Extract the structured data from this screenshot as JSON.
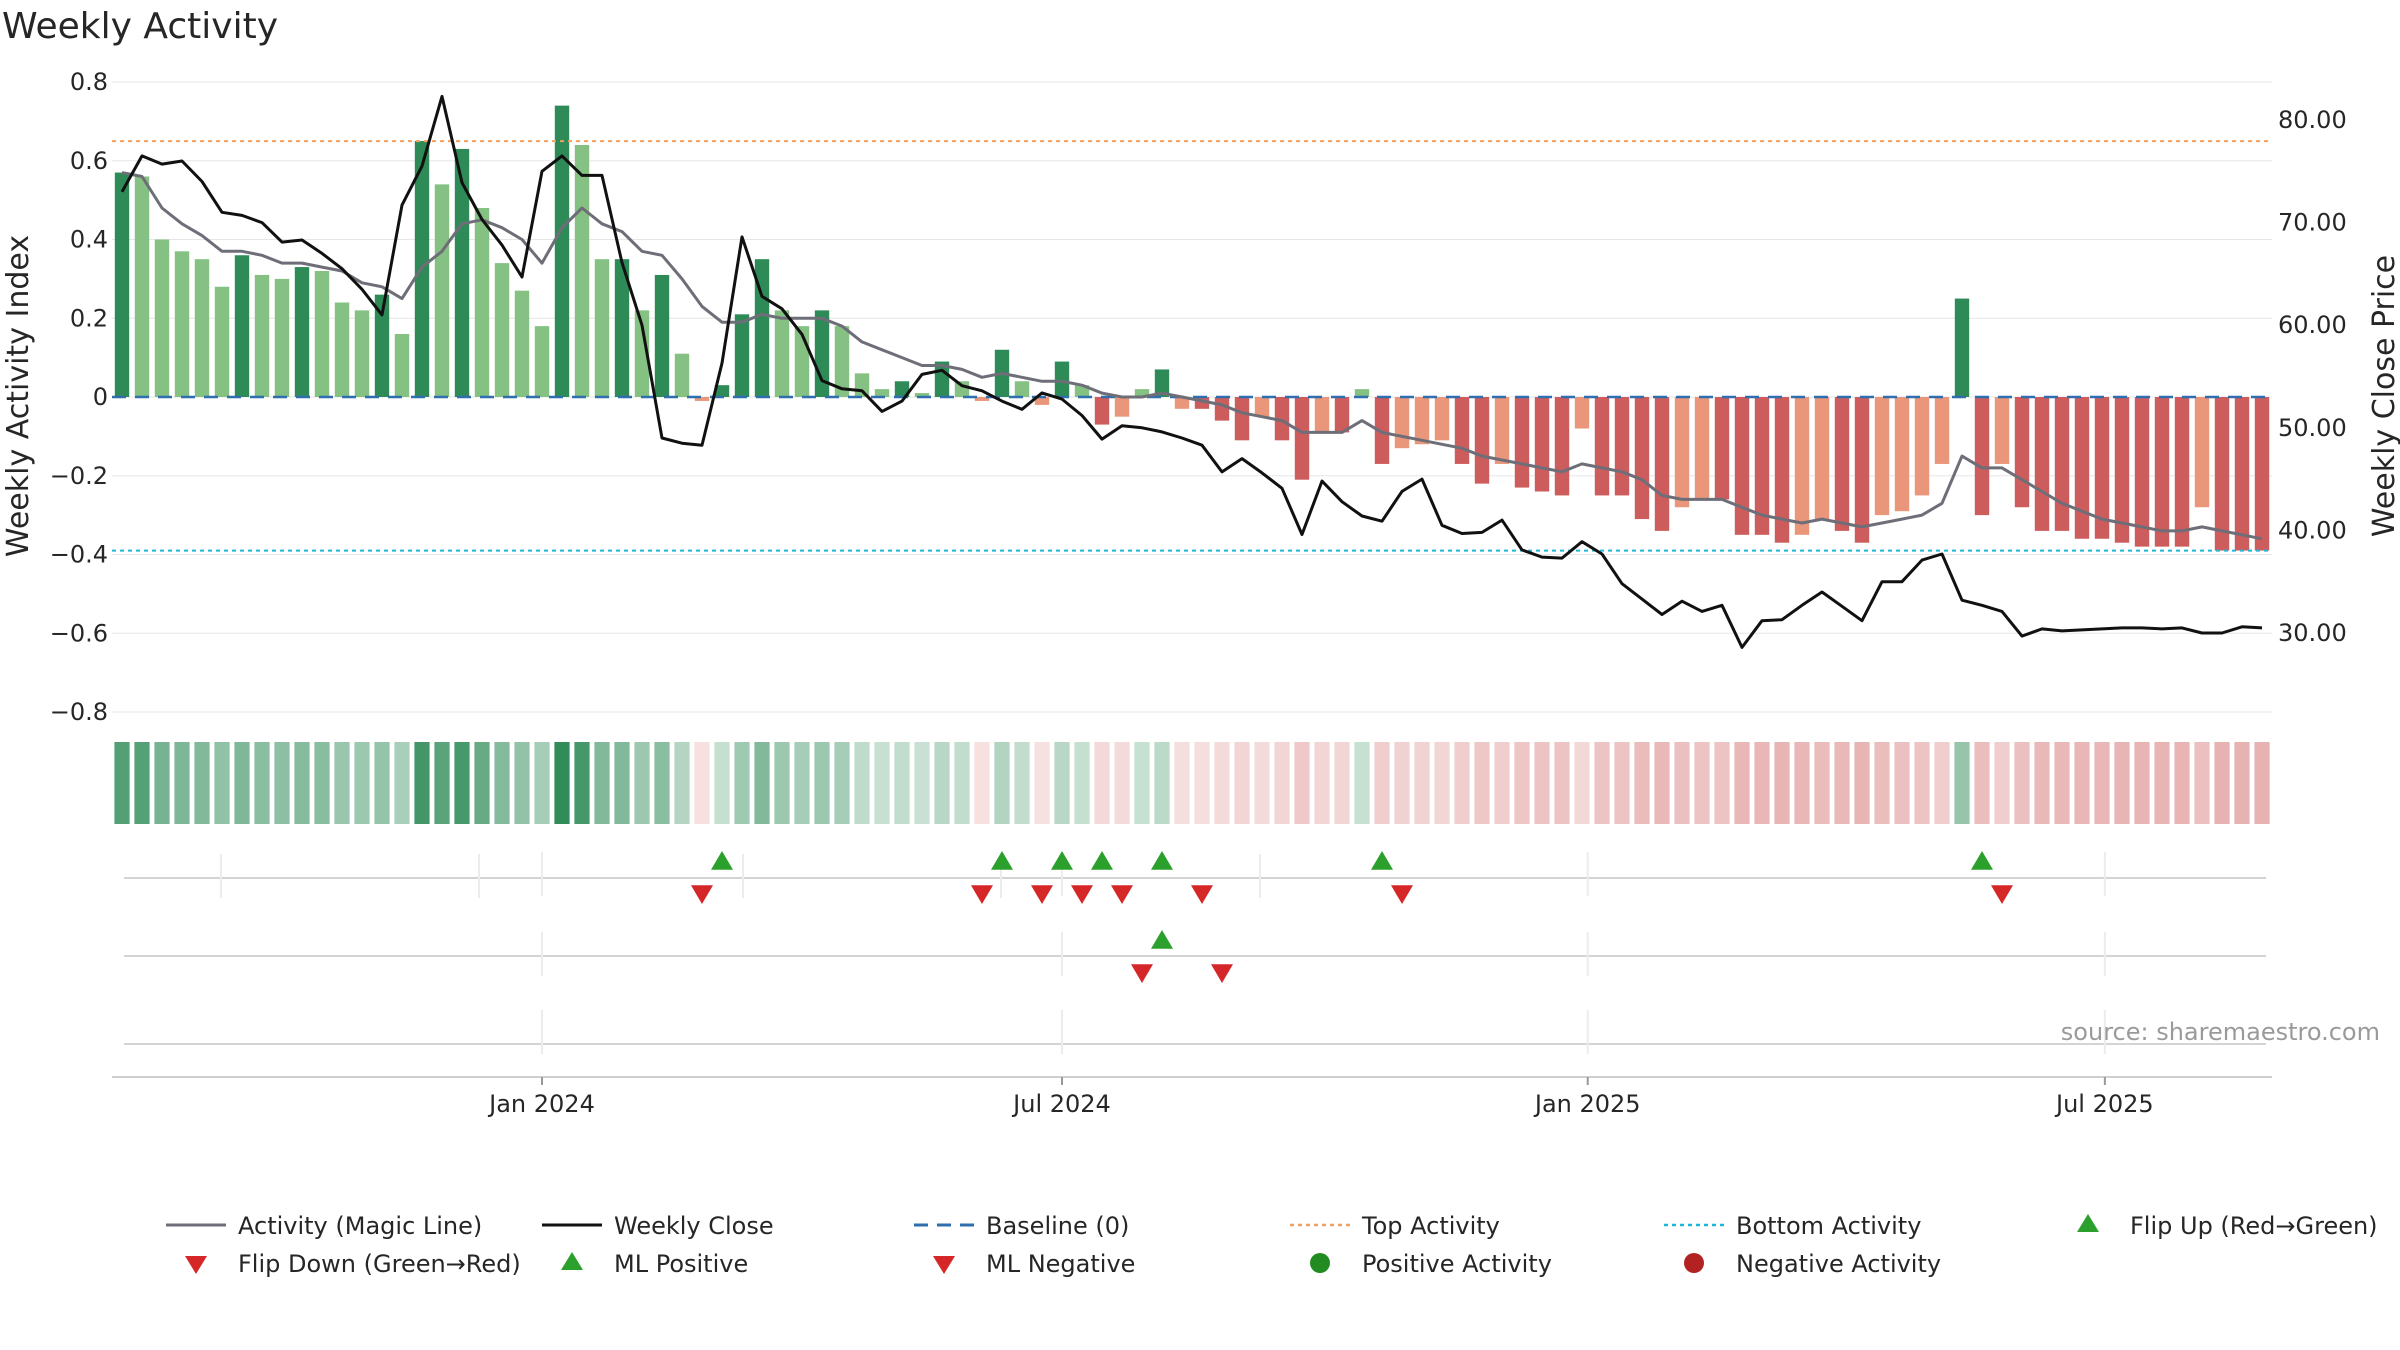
{
  "chart_data": {
    "type": "bar",
    "title": "Weekly Activity",
    "ylabel": "Weekly Activity Index",
    "y2label": "Weekly Close Price",
    "ylim": [
      -0.8,
      0.8
    ],
    "y2lim": [
      22.3,
      83.7
    ],
    "yticks": [
      "0.8",
      "0.6",
      "0.4",
      "0.2",
      "0",
      "−0.2",
      "−0.4",
      "−0.6",
      "−0.8"
    ],
    "yticks_values": [
      0.8,
      0.6,
      0.4,
      0.2,
      0,
      -0.2,
      -0.4,
      -0.6,
      -0.8
    ],
    "y2ticks": [
      "80.00",
      "70.00",
      "60.00",
      "50.00",
      "40.00",
      "30.00"
    ],
    "y2ticks_values": [
      80,
      70,
      60,
      50,
      40,
      30
    ],
    "xticks": [
      {
        "date": "2024-01-01",
        "label": "Jan 2024"
      },
      {
        "date": "2024-07-01",
        "label": "Jul 2024"
      },
      {
        "date": "2025-01-01",
        "label": "Jan 2025"
      },
      {
        "date": "2025-07-01",
        "label": "Jul 2025"
      }
    ],
    "week_start": "2023-08-07",
    "grid": true,
    "reference_lines": {
      "baseline": 0,
      "top_activity": 0.65,
      "bottom_activity": -0.39
    },
    "series": [
      {
        "name": "Activity (Magic Line)",
        "kind": "line",
        "color": "#6e6e78"
      },
      {
        "name": "Weekly Close",
        "kind": "line",
        "color": "#111111"
      },
      {
        "name": "Baseline (0)",
        "kind": "dashed",
        "color": "#2f6fb0"
      },
      {
        "name": "Top Activity",
        "kind": "dotted",
        "color": "#f0a060"
      },
      {
        "name": "Bottom Activity",
        "kind": "dotted",
        "color": "#20b8d8"
      }
    ],
    "activity": [
      0.57,
      0.56,
      0.4,
      0.37,
      0.35,
      0.28,
      0.36,
      0.31,
      0.3,
      0.33,
      0.32,
      0.24,
      0.22,
      0.26,
      0.16,
      0.65,
      0.54,
      0.63,
      0.48,
      0.34,
      0.27,
      0.18,
      0.74,
      0.64,
      0.35,
      0.35,
      0.22,
      0.31,
      0.11,
      -0.01,
      0.03,
      0.21,
      0.35,
      0.22,
      0.18,
      0.22,
      0.18,
      0.06,
      0.02,
      0.04,
      0.01,
      0.09,
      0.04,
      -0.01,
      0.12,
      0.04,
      -0.02,
      0.09,
      0.03,
      -0.07,
      -0.05,
      0.02,
      0.07,
      -0.03,
      -0.03,
      -0.06,
      -0.11,
      -0.05,
      -0.11,
      -0.21,
      -0.09,
      -0.09,
      0.02,
      -0.17,
      -0.13,
      -0.12,
      -0.11,
      -0.17,
      -0.22,
      -0.17,
      -0.23,
      -0.24,
      -0.25,
      -0.08,
      -0.25,
      -0.25,
      -0.31,
      -0.34,
      -0.28,
      -0.26,
      -0.26,
      -0.35,
      -0.35,
      -0.37,
      -0.35,
      -0.31,
      -0.34,
      -0.37,
      -0.3,
      -0.29,
      -0.25,
      -0.17,
      0.25,
      -0.3,
      -0.17,
      -0.28,
      -0.34,
      -0.34,
      -0.36,
      -0.36,
      -0.37,
      -0.38,
      -0.38,
      -0.38,
      -0.28,
      -0.39,
      -0.39,
      -0.39
    ],
    "magic_line": [
      0.57,
      0.56,
      0.48,
      0.44,
      0.41,
      0.37,
      0.37,
      0.36,
      0.34,
      0.34,
      0.33,
      0.32,
      0.29,
      0.28,
      0.25,
      0.33,
      0.37,
      0.44,
      0.45,
      0.43,
      0.4,
      0.34,
      0.43,
      0.48,
      0.44,
      0.42,
      0.37,
      0.36,
      0.3,
      0.23,
      0.19,
      0.19,
      0.21,
      0.2,
      0.2,
      0.2,
      0.18,
      0.14,
      0.12,
      0.1,
      0.08,
      0.08,
      0.07,
      0.05,
      0.06,
      0.05,
      0.04,
      0.04,
      0.03,
      0.01,
      0.0,
      0.0,
      0.01,
      0.0,
      -0.01,
      -0.02,
      -0.04,
      -0.05,
      -0.06,
      -0.09,
      -0.09,
      -0.09,
      -0.06,
      -0.09,
      -0.1,
      -0.11,
      -0.12,
      -0.13,
      -0.15,
      -0.16,
      -0.17,
      -0.18,
      -0.19,
      -0.17,
      -0.18,
      -0.19,
      -0.21,
      -0.25,
      -0.26,
      -0.26,
      -0.26,
      -0.28,
      -0.3,
      -0.31,
      -0.32,
      -0.31,
      -0.32,
      -0.33,
      -0.32,
      -0.31,
      -0.3,
      -0.27,
      -0.15,
      -0.18,
      -0.18,
      -0.21,
      -0.24,
      -0.27,
      -0.29,
      -0.31,
      -0.32,
      -0.33,
      -0.34,
      -0.34,
      -0.33,
      -0.34,
      -0.35,
      -0.36
    ],
    "weekly_close": [
      73.0,
      76.5,
      75.7,
      76.0,
      74.0,
      71.0,
      70.7,
      70.0,
      68.1,
      68.3,
      67.0,
      65.5,
      63.5,
      61.0,
      71.7,
      75.5,
      82.3,
      73.9,
      70.3,
      67.8,
      64.7,
      75.0,
      76.5,
      74.6,
      74.6,
      66.1,
      60.0,
      49.0,
      48.5,
      48.3,
      56.3,
      68.6,
      62.8,
      61.6,
      59.1,
      54.6,
      53.8,
      53.6,
      51.6,
      52.6,
      55.2,
      55.6,
      54.1,
      53.6,
      52.6,
      51.8,
      53.4,
      52.8,
      51.2,
      48.9,
      50.2,
      50.0,
      49.6,
      49.0,
      48.3,
      45.7,
      47.0,
      45.6,
      44.1,
      39.6,
      44.8,
      42.8,
      41.4,
      40.9,
      43.8,
      45.0,
      40.5,
      39.7,
      39.8,
      41.0,
      38.1,
      37.4,
      37.3,
      38.9,
      37.7,
      34.8,
      33.3,
      31.8,
      33.1,
      32.1,
      32.7,
      28.6,
      31.2,
      31.3,
      32.7,
      34.0,
      32.6,
      31.2,
      35.0,
      35.0,
      37.1,
      37.7,
      33.2,
      32.7,
      32.1,
      29.7,
      30.4,
      30.2,
      30.3,
      30.4,
      30.5,
      30.5,
      30.4,
      30.5,
      30.0,
      30.0,
      30.6,
      30.5
    ]
  },
  "flip_markers": {
    "row1_up": [
      30,
      44,
      47,
      49,
      52,
      63,
      93
    ],
    "row1_down": [
      29,
      43,
      46,
      48,
      50,
      54,
      64,
      94
    ],
    "row2_up": [
      52
    ],
    "row2_down": [
      51,
      55
    ]
  },
  "colors": {
    "strong_green": "#2e8b57",
    "light_green": "#84c182",
    "strong_red": "#cd5c5c",
    "light_red": "#e9967a",
    "flip_up": "#2ca02c",
    "flip_down": "#d62728",
    "positive_dot": "#228b22",
    "negative_dot": "#b22222"
  },
  "legend": [
    {
      "label": "Activity (Magic Line)",
      "symbol": "line",
      "color": "#6e6e78"
    },
    {
      "label": "Weekly Close",
      "symbol": "line",
      "color": "#111111"
    },
    {
      "label": "Baseline (0)",
      "symbol": "dashed",
      "color": "#2f6fb0"
    },
    {
      "label": "Top Activity",
      "symbol": "dotted",
      "color": "#f0a060"
    },
    {
      "label": "Bottom Activity",
      "symbol": "dotted",
      "color": "#20b8d8"
    },
    {
      "label": "Flip Up (Red→Green)",
      "symbol": "triangle-up",
      "color": "#2ca02c"
    },
    {
      "label": "Flip Down (Green→Red)",
      "symbol": "triangle-down",
      "color": "#d62728"
    },
    {
      "label": "ML Positive",
      "symbol": "triangle-up",
      "color": "#2ca02c"
    },
    {
      "label": "ML Negative",
      "symbol": "triangle-down",
      "color": "#d62728"
    },
    {
      "label": "Positive Activity",
      "symbol": "circle",
      "color": "#228b22"
    },
    {
      "label": "Negative Activity",
      "symbol": "circle",
      "color": "#b22222"
    }
  ],
  "source": "source: sharemaestro.com"
}
